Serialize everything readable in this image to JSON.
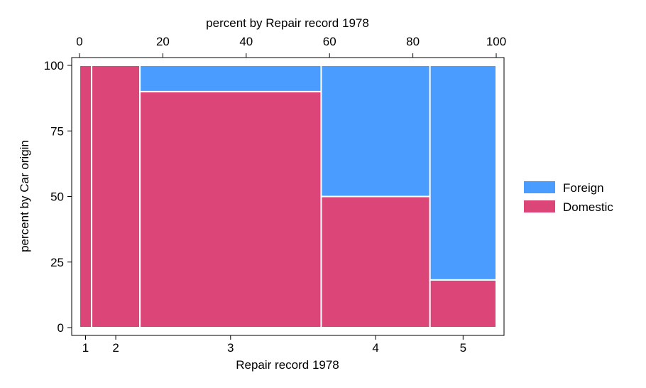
{
  "chart_data": {
    "type": "mosaic",
    "title": "",
    "xlabel": "Repair record 1978",
    "x2label": "percent by Repair record 1978",
    "ylabel": "percent by Car origin",
    "xlim": [
      0,
      100
    ],
    "ylim": [
      0,
      100
    ],
    "x_ticks": [
      0,
      20,
      40,
      60,
      80,
      100
    ],
    "y_ticks": [
      0,
      25,
      50,
      75,
      100
    ],
    "grid": false,
    "legend_position": "right",
    "categories": [
      "1",
      "2",
      "3",
      "4",
      "5"
    ],
    "category_widths_percent": [
      2.9,
      11.6,
      43.5,
      26.1,
      15.9
    ],
    "series": [
      {
        "name": "Domestic",
        "color": "#DC4577",
        "values": [
          100,
          100,
          90,
          50,
          18.2
        ]
      },
      {
        "name": "Foreign",
        "color": "#4A9DFE",
        "values": [
          0,
          0,
          10,
          50,
          81.8
        ]
      }
    ],
    "legend": [
      {
        "name": "Foreign",
        "color": "#4A9DFE"
      },
      {
        "name": "Domestic",
        "color": "#DC4577"
      }
    ]
  }
}
